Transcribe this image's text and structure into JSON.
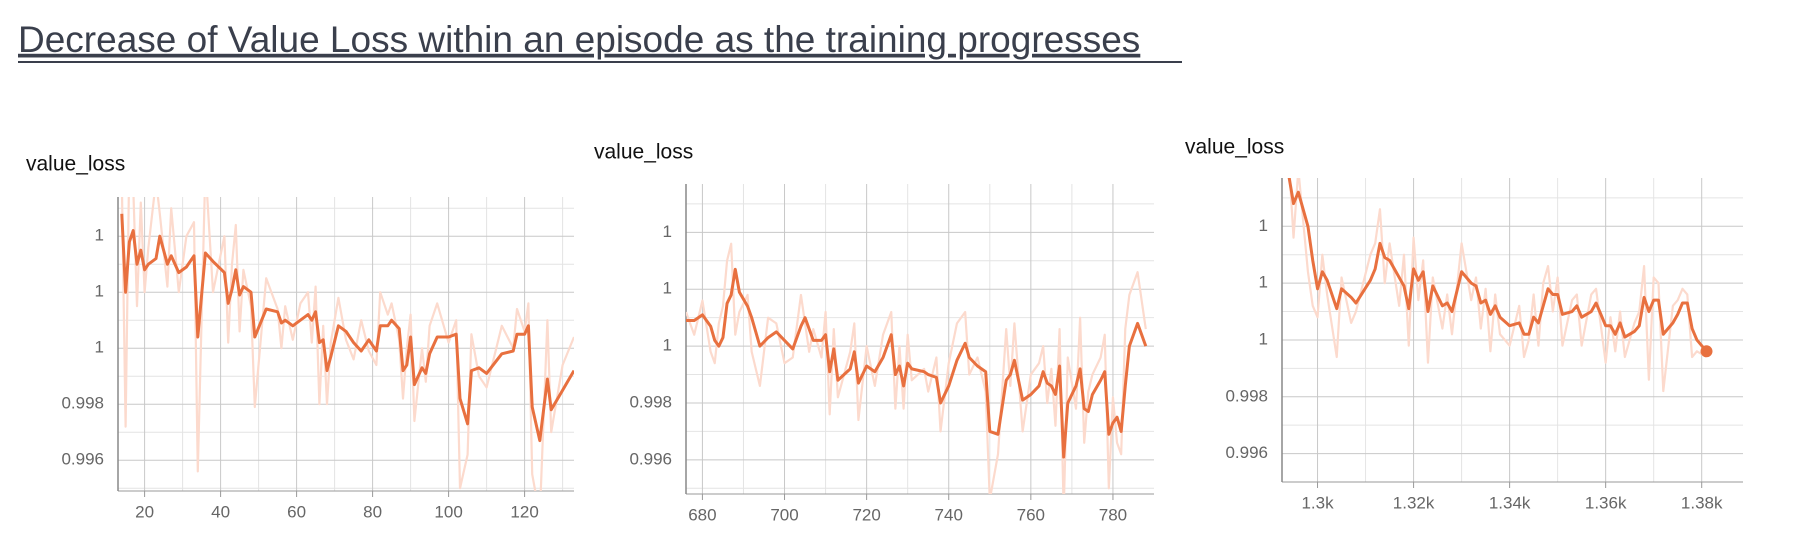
{
  "header": {
    "title": "Decrease of Value Loss within an episode as the training progresses"
  },
  "chart_data": [
    {
      "type": "line",
      "title": "value_loss",
      "x": [
        14,
        15,
        16,
        17,
        18,
        19,
        20,
        21,
        23,
        24,
        26,
        27,
        29,
        31,
        33,
        34,
        36,
        38,
        41,
        42,
        43,
        44,
        45,
        46,
        48,
        49,
        52,
        55,
        56,
        57,
        59,
        61,
        63,
        64,
        65,
        66,
        67,
        68,
        69,
        71,
        73,
        75,
        77,
        79,
        81,
        82,
        84,
        85,
        87,
        88,
        89,
        90,
        91,
        93,
        94,
        95,
        97,
        100,
        102,
        103,
        105,
        106,
        108,
        110,
        114,
        117,
        118,
        120,
        121,
        122,
        124,
        126,
        127,
        130,
        133
      ],
      "series": [
        {
          "color": "#fcdacd",
          "values": [
            1.006,
            0.9972,
            1.007,
            1.0058,
            1.0015,
            1.0052,
            1.002,
            1.0036,
            1.006,
            1.0048,
            1.0022,
            1.005,
            1.002,
            1.004,
            1.0045,
            0.9956,
            1.0065,
            1.002,
            1.004,
            1.0002,
            1.003,
            1.0044,
            1.0006,
            1.0028,
            1.0015,
            0.9979,
            1.0025,
            1.0014,
            1.0,
            1.0015,
            1.0003,
            1.0016,
            1.002,
            1.0002,
            1.0022,
            0.998,
            1.0008,
            0.998,
            1.0002,
            1.0018,
            1.0003,
            0.9996,
            1.001,
            0.9999,
            0.9994,
            1.002,
            1.0012,
            1.0016,
            1.0003,
            0.9982,
            1.0,
            1.0012,
            0.9974,
            1.0,
            0.9988,
            1.0008,
            1.0016,
            1.0002,
            1.001,
            0.995,
            0.9962,
            1.0005,
            0.999,
            0.9986,
            1.0008,
            1.0,
            1.0014,
            1.0006,
            1.0016,
            0.9955,
            0.994,
            1.001,
            0.997,
            0.9994,
            1.0004
          ]
        },
        {
          "color": "#e8703f",
          "values": [
            1.0048,
            1.002,
            1.0038,
            1.0042,
            1.003,
            1.0035,
            1.0028,
            1.003,
            1.0032,
            1.004,
            1.003,
            1.0033,
            1.0027,
            1.0029,
            1.0033,
            1.0004,
            1.0034,
            1.0031,
            1.0027,
            1.0016,
            1.0021,
            1.0028,
            1.0019,
            1.0022,
            1.002,
            1.0004,
            1.0014,
            1.0013,
            1.0009,
            1.001,
            1.0008,
            1.001,
            1.0012,
            1.001,
            1.0013,
            1.0002,
            1.0003,
            0.9992,
            0.9997,
            1.0008,
            1.0006,
            1.0002,
            0.9999,
            1.0003,
            0.9999,
            1.0008,
            1.0008,
            1.001,
            1.0007,
            0.9992,
            0.9994,
            1.0004,
            0.9987,
            0.9993,
            0.9991,
            0.9998,
            1.0004,
            1.0004,
            1.0005,
            0.9982,
            0.9973,
            0.9992,
            0.9993,
            0.9991,
            0.9998,
            0.9999,
            1.0005,
            1.0005,
            1.0008,
            0.9979,
            0.9967,
            0.9989,
            0.9978,
            0.9985,
            0.9992
          ]
        }
      ],
      "xlim": [
        13,
        133
      ],
      "ylim": [
        0.9949,
        1.0054
      ],
      "xticks": [
        20,
        40,
        60,
        80,
        100,
        120
      ],
      "yticks": [
        {
          "value": 1.004,
          "label": "1"
        },
        {
          "value": 1.002,
          "label": "1"
        },
        {
          "value": 1.0,
          "label": "1"
        },
        0.998,
        0.996
      ],
      "grid": true
    },
    {
      "type": "line",
      "title": "value_loss",
      "x": [
        676,
        678,
        680,
        682,
        683,
        684,
        685,
        686,
        687,
        688,
        689,
        691,
        692,
        694,
        696,
        698,
        700,
        702,
        704,
        705,
        706,
        707,
        709,
        710,
        711,
        712,
        713,
        716,
        717,
        718,
        720,
        722,
        724,
        726,
        727,
        728,
        729,
        730,
        731,
        734,
        735,
        737,
        738,
        740,
        742,
        744,
        745,
        747,
        749,
        750,
        752,
        754,
        755,
        756,
        758,
        760,
        762,
        763,
        764,
        765,
        766,
        767,
        768,
        769,
        771,
        772,
        773,
        774,
        775,
        777,
        778,
        779,
        780,
        781,
        782,
        783,
        784,
        786,
        788
      ],
      "series": [
        {
          "color": "#fcdacd",
          "values": [
            1.0012,
            1.0004,
            1.0016,
            0.9998,
            0.9994,
            1.0008,
            1.0014,
            1.003,
            1.0036,
            1.0004,
            1.0012,
            1.0018,
            0.9998,
            0.9986,
            1.001,
            1.0008,
            0.9994,
            0.9996,
            1.0018,
            1.0008,
            0.9998,
            1.0006,
            0.9996,
            1.0012,
            0.9976,
            1.0006,
            0.9982,
            0.9998,
            1.0008,
            0.9974,
            1.0,
            0.9986,
            1.0004,
            1.0012,
            0.9978,
            1.0,
            0.9978,
            1.0004,
            0.9988,
            0.9992,
            0.9984,
            0.9996,
            0.997,
            0.9994,
            1.0008,
            1.0012,
            0.999,
            0.9996,
            0.9984,
            0.9946,
            0.9962,
            1.0006,
            0.9986,
            1.0008,
            0.997,
            0.999,
            0.9994,
            1.0,
            0.998,
            0.9992,
            0.9972,
            1.0006,
            0.9942,
            0.9996,
            0.9978,
            1.001,
            0.9966,
            0.9984,
            0.999,
            0.9996,
            1.0004,
            0.995,
            0.9982,
            0.9966,
            0.9962,
            1.0006,
            1.0018,
            1.0026,
            1.0006
          ]
        },
        {
          "color": "#e8703f",
          "values": [
            1.0009,
            1.0009,
            1.0011,
            1.0007,
            1.0002,
            1.0,
            1.0003,
            1.0015,
            1.0018,
            1.0027,
            1.0019,
            1.0014,
            1.001,
            1.0,
            1.0003,
            1.0005,
            1.0002,
            0.9999,
            1.0007,
            1.001,
            1.0006,
            1.0002,
            1.0002,
            1.0004,
            0.9991,
            0.9999,
            0.9988,
            0.9992,
            0.9998,
            0.9987,
            0.9993,
            0.9991,
            0.9996,
            1.0004,
            0.999,
            0.9993,
            0.9986,
            0.9994,
            0.9992,
            0.9991,
            0.999,
            0.9989,
            0.998,
            0.9986,
            0.9995,
            1.0001,
            0.9996,
            0.9993,
            0.9991,
            0.997,
            0.9969,
            0.9988,
            0.999,
            0.9995,
            0.9981,
            0.9983,
            0.9986,
            0.9991,
            0.9987,
            0.9986,
            0.9983,
            0.9993,
            0.9961,
            0.998,
            0.9986,
            0.9992,
            0.9978,
            0.9977,
            0.9983,
            0.9988,
            0.9991,
            0.9969,
            0.9973,
            0.9975,
            0.997,
            0.9986,
            1.0,
            1.0008,
            1.0
          ]
        }
      ],
      "xlim": [
        676,
        790
      ],
      "ylim": [
        0.9948,
        1.0057
      ],
      "xticks": [
        680,
        700,
        720,
        740,
        760,
        780
      ],
      "yticks": [
        {
          "value": 1.004,
          "label": "1"
        },
        {
          "value": 1.002,
          "label": "1"
        },
        {
          "value": 1.0,
          "label": "1"
        },
        0.998,
        0.996
      ],
      "grid": true
    },
    {
      "type": "line",
      "title": "value_loss",
      "x": [
        1294,
        1295,
        1296,
        1298,
        1299,
        1300,
        1301,
        1302,
        1304,
        1305,
        1307,
        1308,
        1311,
        1312,
        1313,
        1314,
        1315,
        1317,
        1318,
        1319,
        1320,
        1321,
        1322,
        1323,
        1324,
        1326,
        1327,
        1328,
        1330,
        1332,
        1333,
        1334,
        1335,
        1336,
        1337,
        1338,
        1340,
        1342,
        1343,
        1344,
        1345,
        1346,
        1347,
        1348,
        1349,
        1350,
        1351,
        1353,
        1354,
        1355,
        1357,
        1358,
        1360,
        1361,
        1362,
        1363,
        1364,
        1366,
        1367,
        1368,
        1369,
        1370,
        1371,
        1372,
        1374,
        1375,
        1376,
        1377,
        1378,
        1379,
        1381
      ],
      "series": [
        {
          "color": "#fcdacd",
          "values": [
            1.0064,
            1.0036,
            1.006,
            1.0024,
            1.0012,
            1.0008,
            1.003,
            1.0016,
            0.9994,
            1.0022,
            1.0006,
            1.001,
            1.003,
            1.0034,
            1.0046,
            1.002,
            1.0034,
            1.0012,
            1.003,
            0.9998,
            1.0036,
            1.0014,
            1.0028,
            0.9992,
            1.0022,
            1.0004,
            1.0016,
            1.0002,
            1.0034,
            1.0014,
            1.0022,
            1.0004,
            1.0018,
            0.9996,
            1.0016,
            1.0002,
            0.9998,
            1.0012,
            0.9994,
            1.0,
            1.0016,
            0.9998,
            1.002,
            1.0026,
            1.001,
            1.0022,
            0.9998,
            1.0014,
            1.0016,
            0.9998,
            1.0016,
            1.0018,
            0.9992,
            1.0008,
            0.9996,
            1.001,
            0.9994,
            1.0006,
            1.001,
            1.0026,
            0.9986,
            1.0022,
            1.002,
            0.9982,
            1.0012,
            1.0014,
            1.0018,
            1.0016,
            0.9994,
            0.9996,
            0.9994
          ]
        },
        {
          "color": "#e8703f",
          "values": [
            1.0058,
            1.0048,
            1.0052,
            1.004,
            1.0028,
            1.0018,
            1.0024,
            1.0021,
            1.0011,
            1.0018,
            1.0015,
            1.0013,
            1.0021,
            1.0025,
            1.0034,
            1.0029,
            1.0028,
            1.0022,
            1.0019,
            1.0011,
            1.0025,
            1.0021,
            1.0024,
            1.001,
            1.0019,
            1.0012,
            1.0013,
            1.001,
            1.0024,
            1.002,
            1.0019,
            1.0013,
            1.0014,
            1.0009,
            1.0012,
            1.0008,
            1.0005,
            1.0006,
            1.0002,
            1.0002,
            1.0008,
            1.0006,
            1.0012,
            1.0018,
            1.0016,
            1.0016,
            1.0009,
            1.001,
            1.0012,
            1.0008,
            1.001,
            1.0013,
            1.0005,
            1.0005,
            1.0002,
            1.0006,
            1.0001,
            1.0003,
            1.0005,
            1.0015,
            1.001,
            1.0014,
            1.0014,
            1.0002,
            1.0006,
            1.0009,
            1.0013,
            1.0013,
            1.0004,
            1.0,
            0.9996
          ]
        }
      ],
      "xlim": [
        1292.6,
        1388.6
      ],
      "ylim": [
        0.995,
        1.0057
      ],
      "xticks": [
        {
          "value": 1300,
          "label": "1.3k"
        },
        {
          "value": 1320,
          "label": "1.32k"
        },
        {
          "value": 1340,
          "label": "1.34k"
        },
        {
          "value": 1360,
          "label": "1.36k"
        },
        {
          "value": 1380,
          "label": "1.38k"
        }
      ],
      "yticks": [
        {
          "value": 1.004,
          "label": "1"
        },
        {
          "value": 1.002,
          "label": "1"
        },
        {
          "value": 1.0,
          "label": "1"
        },
        0.998,
        0.996
      ],
      "grid": true,
      "last_point_marker": true
    }
  ]
}
